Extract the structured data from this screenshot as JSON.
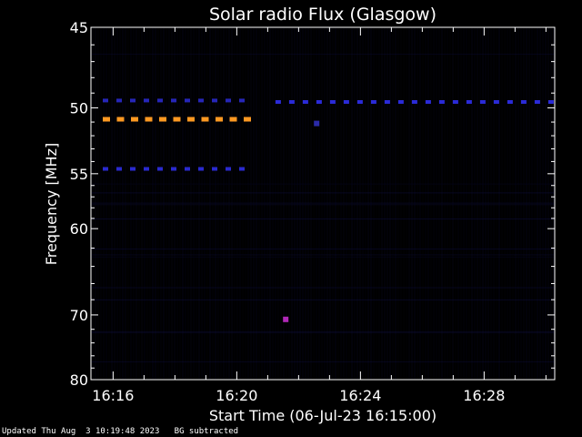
{
  "chart_data": {
    "type": "heatmap",
    "title": "Solar radio Flux (Glasgow)",
    "xlabel": "Start Time (06-Jul-23 16:15:00)",
    "ylabel": "Frequency [MHz]",
    "x_unit": "time",
    "xlim": [
      "16:15:17",
      "16:30:17"
    ],
    "ylim": [
      45,
      80
    ],
    "x_ticks": [
      "16:16",
      "16:20",
      "16:24",
      "16:28"
    ],
    "y_ticks": [
      45,
      50,
      55,
      60,
      70,
      80
    ],
    "features": [
      {
        "kind": "dashed-line",
        "color": "#ff9922",
        "y": 50.8,
        "x_start": "16:15:40",
        "x_end": "16:20:35"
      },
      {
        "kind": "dashed-line",
        "color": "#2a2acf",
        "y": 54.6,
        "x_start": "16:15:40",
        "x_end": "16:20:35"
      },
      {
        "kind": "dashed-line",
        "color": "#2626b8",
        "y": 49.5,
        "x_start": "16:15:40",
        "x_end": "16:20:35"
      },
      {
        "kind": "dashed-line",
        "color": "#2a2ad8",
        "y": 49.6,
        "x_start": "16:21:15",
        "x_end": "16:30:17"
      },
      {
        "kind": "spot",
        "color": "#b028b8",
        "y": 70.6,
        "x": "16:21:35"
      },
      {
        "kind": "spot",
        "color": "#2a2aa8",
        "y": 51.1,
        "x": "16:22:35"
      }
    ]
  },
  "footer": {
    "updated": "Updated Thu Aug  3 10:19:48 2023",
    "note": "BG subtracted"
  }
}
